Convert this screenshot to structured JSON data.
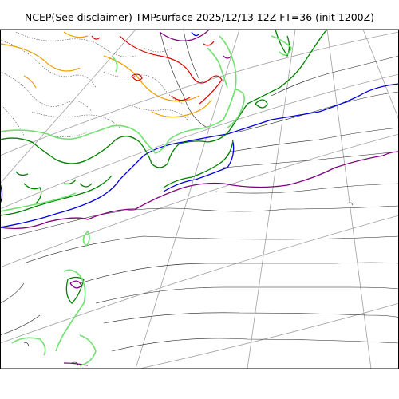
{
  "title": "NCEP(See disclaimer) TMPsurface 2025/12/13 12Z FT=36 (init 1200Z)",
  "colors": {
    "frame": "#000000",
    "graticule": "#a0a0a0",
    "contour_default": "#202020",
    "dotted_cold": "#505050",
    "contour_red": "#e00000",
    "contour_orange": "#f0a000",
    "contour_purple": "#800080",
    "contour_blue": "#0000e0",
    "contour_green": "#008000",
    "contour_lightgreen": "#70e070"
  }
}
